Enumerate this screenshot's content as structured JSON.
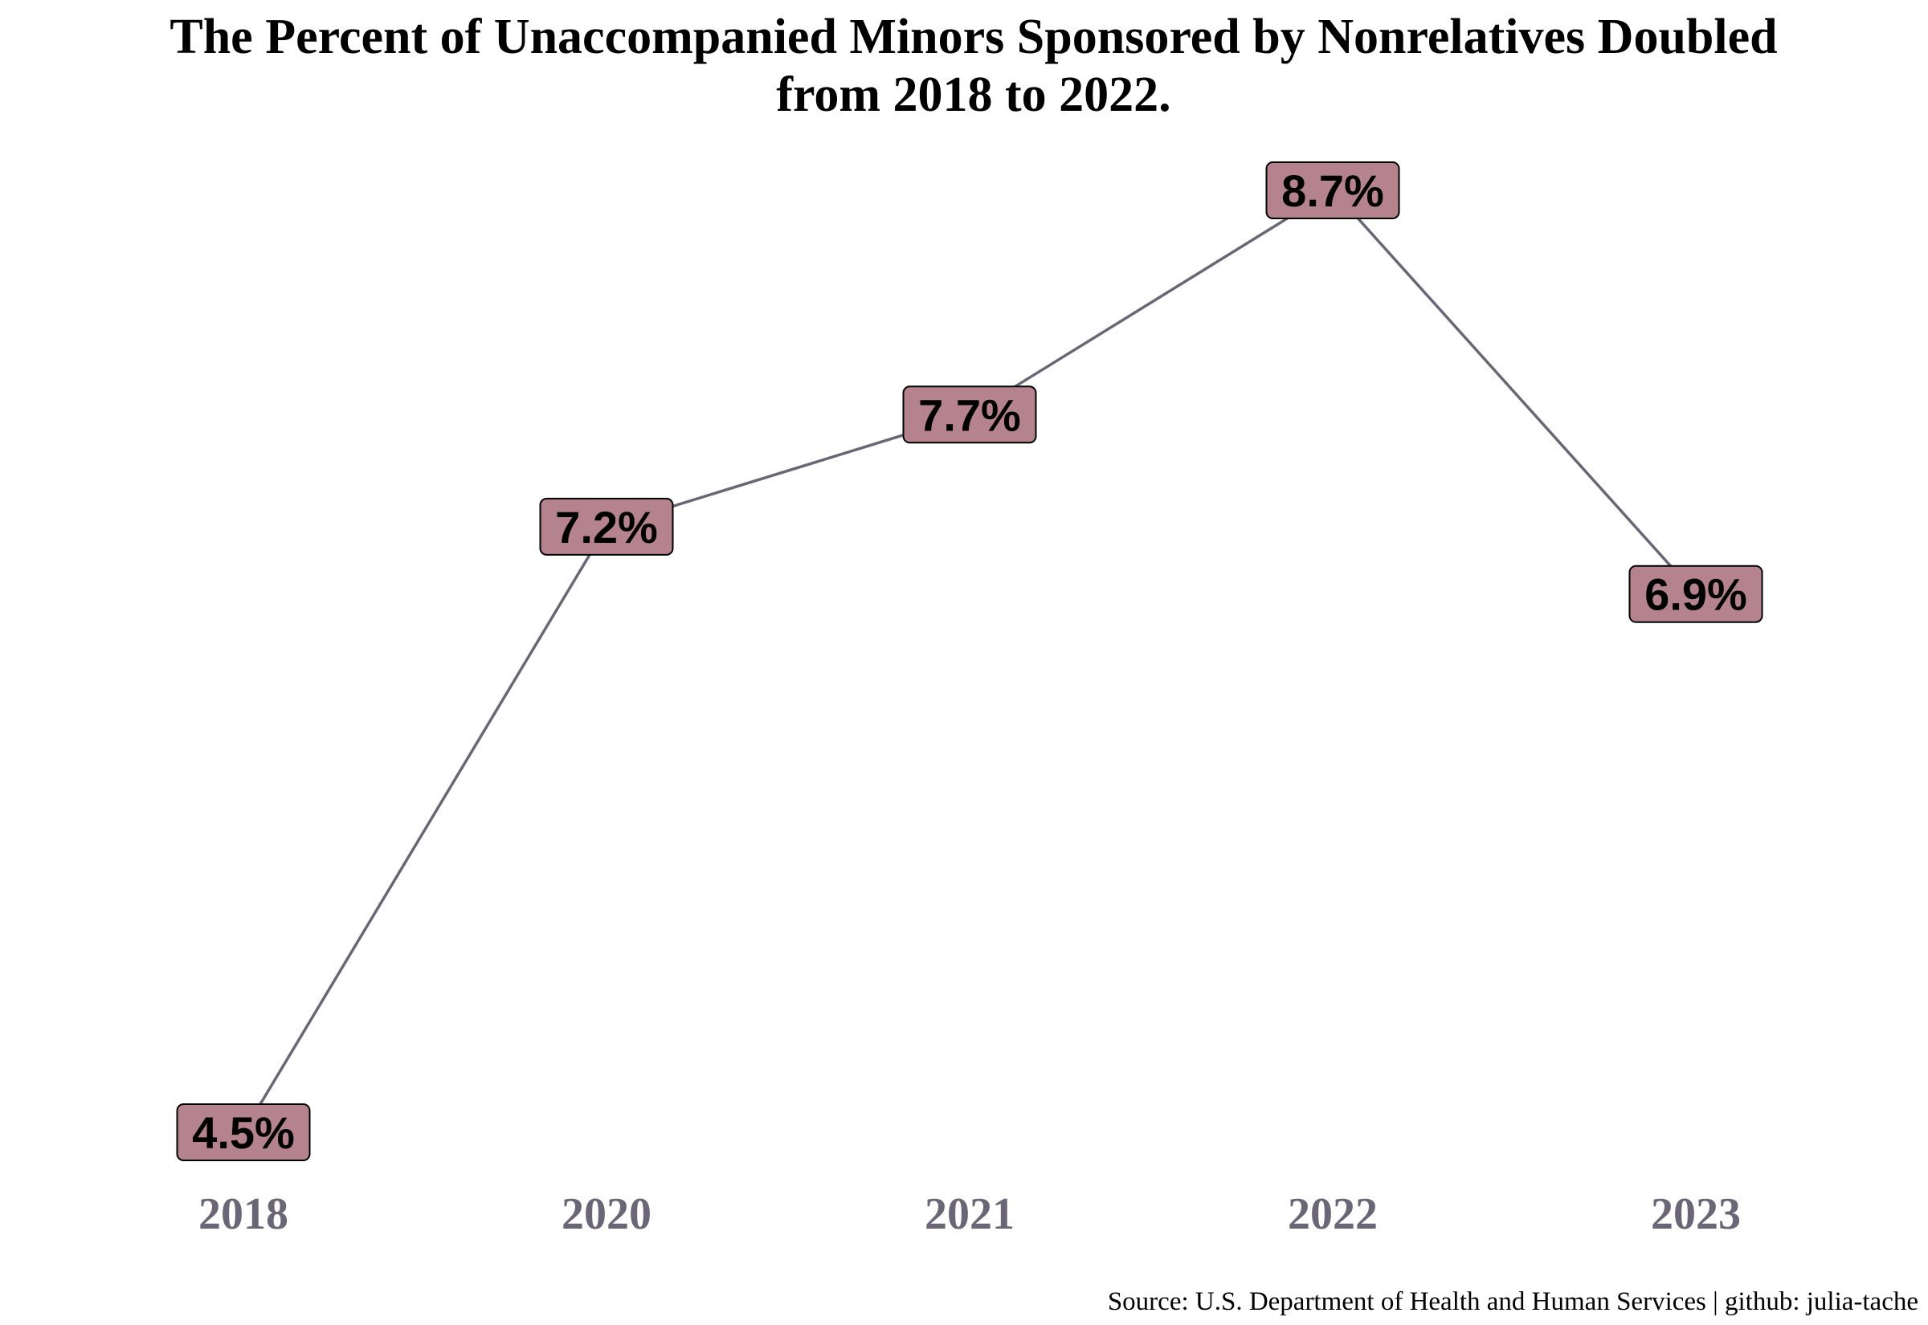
{
  "chart_data": {
    "type": "line",
    "title": "The Percent of Unaccompanied Minors Sponsored by Nonrelatives Doubled from 2018 to 2022.",
    "title_lines": [
      "The Percent of Unaccompanied Minors Sponsored by Nonrelatives Doubled",
      "from 2018 to 2022."
    ],
    "categories": [
      "2018",
      "2020",
      "2021",
      "2022",
      "2023"
    ],
    "values": [
      4.5,
      7.2,
      7.7,
      8.7,
      6.9
    ],
    "data_labels": [
      "4.5%",
      "7.2%",
      "7.7%",
      "8.7%",
      "6.9%"
    ],
    "ylim": [
      4.5,
      8.7
    ],
    "grid": false,
    "y_axis_shown": false,
    "caption": "Source: U.S. Department of Health and Human Services | github: julia-tache",
    "colors": {
      "line": "#6b6676",
      "label_fill": "#b5838d",
      "label_border": "#000000",
      "tick_text": "#6b6676",
      "title_text": "#000000"
    }
  }
}
